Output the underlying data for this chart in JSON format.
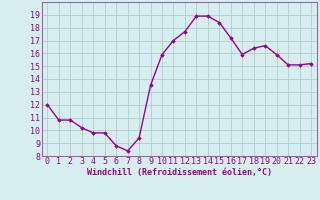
{
  "x": [
    0,
    1,
    2,
    3,
    4,
    5,
    6,
    7,
    8,
    9,
    10,
    11,
    12,
    13,
    14,
    15,
    16,
    17,
    18,
    19,
    20,
    21,
    22,
    23
  ],
  "y": [
    12.0,
    10.8,
    10.8,
    10.2,
    9.8,
    9.8,
    8.8,
    8.4,
    9.4,
    13.5,
    15.9,
    17.0,
    17.7,
    18.9,
    18.9,
    18.4,
    17.2,
    15.9,
    16.4,
    16.6,
    15.9,
    15.1,
    15.1,
    15.2
  ],
  "line_color": "#990099",
  "marker": "D",
  "marker_size": 1.8,
  "bg_color": "#d6eef0",
  "grid_color": "#b0cdd0",
  "xlabel": "Windchill (Refroidissement éolien,°C)",
  "xlabel_fontsize": 6.0,
  "tick_fontsize": 6.0,
  "ylim": [
    8,
    20
  ],
  "yticks": [
    8,
    9,
    10,
    11,
    12,
    13,
    14,
    15,
    16,
    17,
    18,
    19
  ],
  "xticks": [
    0,
    1,
    2,
    3,
    4,
    5,
    6,
    7,
    8,
    9,
    10,
    11,
    12,
    13,
    14,
    15,
    16,
    17,
    18,
    19,
    20,
    21,
    22,
    23
  ],
  "line_width": 1.0,
  "spine_color": "#9966aa"
}
